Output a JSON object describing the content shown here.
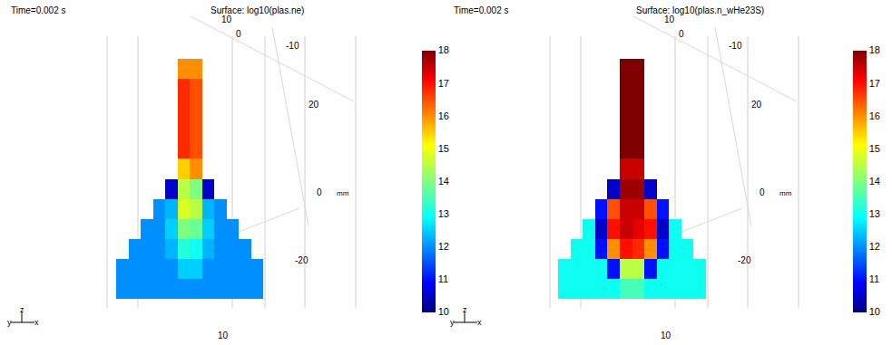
{
  "chart_data": [
    {
      "type": "heatmap",
      "time": "Time=0.002 s",
      "title": "Surface: log10(plas.ne)",
      "cells": [
        [
          null,
          null,
          null,
          null,
          null,
          16,
          16,
          null,
          null,
          null,
          null,
          null
        ],
        [
          null,
          null,
          null,
          null,
          null,
          16.8,
          16.5,
          null,
          null,
          null,
          null,
          null
        ],
        [
          null,
          null,
          null,
          null,
          null,
          16.8,
          16.5,
          null,
          null,
          null,
          null,
          null
        ],
        [
          null,
          null,
          null,
          null,
          null,
          16.8,
          16.5,
          null,
          null,
          null,
          null,
          null
        ],
        [
          null,
          null,
          null,
          null,
          null,
          16.8,
          16.5,
          null,
          null,
          null,
          null,
          null
        ],
        [
          null,
          null,
          null,
          null,
          null,
          15.5,
          16,
          null,
          null,
          null,
          null,
          null
        ],
        [
          null,
          null,
          null,
          null,
          10.5,
          14.5,
          14,
          10.5,
          null,
          null,
          null,
          null
        ],
        [
          null,
          null,
          null,
          12,
          12.3,
          14.8,
          14.5,
          12.3,
          12,
          null,
          null,
          null
        ],
        [
          null,
          null,
          12,
          12,
          12.5,
          14,
          13.8,
          12.5,
          12,
          12,
          null,
          null
        ],
        [
          null,
          12,
          12,
          12,
          12.3,
          13.2,
          13,
          12.3,
          12,
          12,
          12,
          null
        ],
        [
          12,
          12,
          12,
          12,
          12,
          12.5,
          12.5,
          12,
          12,
          12,
          12,
          12
        ],
        [
          12,
          12,
          12,
          12,
          12,
          12,
          12,
          12,
          12,
          12,
          12,
          12
        ]
      ],
      "colorbar": {
        "range": [
          10,
          18
        ],
        "ticks": [
          10,
          11,
          12,
          13,
          14,
          15,
          16,
          17,
          18
        ]
      },
      "axis_ticks": [
        10,
        0,
        -10,
        20,
        0,
        -20,
        10
      ],
      "unit": "mm",
      "triad": [
        "y",
        "z",
        "x"
      ]
    },
    {
      "type": "heatmap",
      "time": "Time=0.002 s",
      "title": "Surface: log10(plas.n_wHe23S)",
      "cells": [
        [
          null,
          null,
          null,
          null,
          null,
          18,
          18,
          null,
          null,
          null,
          null,
          null
        ],
        [
          null,
          null,
          null,
          null,
          null,
          18,
          18,
          null,
          null,
          null,
          null,
          null
        ],
        [
          null,
          null,
          null,
          null,
          null,
          18,
          18,
          null,
          null,
          null,
          null,
          null
        ],
        [
          null,
          null,
          null,
          null,
          null,
          18,
          18,
          null,
          null,
          null,
          null,
          null
        ],
        [
          null,
          null,
          null,
          null,
          null,
          18,
          18,
          null,
          null,
          null,
          null,
          null
        ],
        [
          null,
          null,
          null,
          null,
          null,
          17.5,
          17.5,
          null,
          null,
          null,
          null,
          null
        ],
        [
          null,
          null,
          null,
          null,
          10.5,
          17.8,
          17.8,
          10.5,
          null,
          null,
          null,
          null
        ],
        [
          null,
          null,
          null,
          11,
          16.5,
          17.5,
          17.5,
          16.5,
          11,
          null,
          null,
          null
        ],
        [
          null,
          null,
          13,
          10.5,
          17,
          17.5,
          17.3,
          17,
          10.5,
          13,
          null,
          null
        ],
        [
          null,
          13,
          13,
          11,
          16,
          17,
          16.8,
          16,
          11,
          13,
          13,
          null
        ],
        [
          13,
          13,
          13,
          13,
          11,
          14.5,
          14.5,
          11,
          13,
          13,
          13,
          13
        ],
        [
          13,
          13,
          13,
          13,
          13,
          13.5,
          13.5,
          13,
          13,
          13,
          13,
          13
        ]
      ],
      "colorbar": {
        "range": [
          10,
          18
        ],
        "ticks": [
          10,
          11,
          12,
          13,
          14,
          15,
          16,
          17,
          18
        ]
      },
      "axis_ticks": [
        10,
        0,
        -10,
        20,
        0,
        -20,
        10
      ],
      "unit": "mm",
      "triad": [
        "y",
        "z",
        "x"
      ]
    }
  ]
}
